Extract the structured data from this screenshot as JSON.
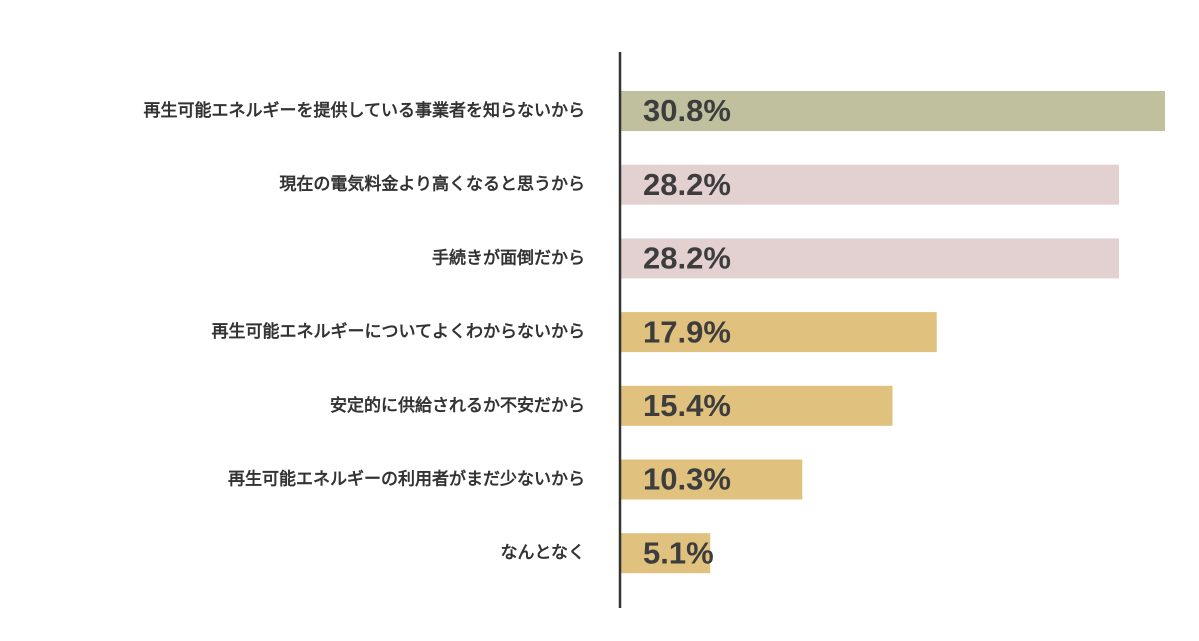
{
  "chart_data": {
    "type": "barh",
    "categories": [
      "再生可能エネルギーを提供している事業者を知らないから",
      "現在の電気料金より高くなると思うから",
      "手続きが面倒だから",
      "再生可能エネルギーについてよくわからないから",
      "安定的に供給されるか不安だから",
      "再生可能エネルギーの利用者がまだ少ないから",
      "なんとなく"
    ],
    "values": [
      30.8,
      28.2,
      28.2,
      17.9,
      15.4,
      10.3,
      5.1
    ],
    "value_labels": [
      "30.8%",
      "28.2%",
      "28.2%",
      "17.9%",
      "15.4%",
      "10.3%",
      "5.1%"
    ],
    "colors": [
      "#c0c09e",
      "#e3d1d1",
      "#e3d1d1",
      "#e0c17e",
      "#e0c17e",
      "#e0c17e",
      "#e0c17e"
    ]
  }
}
